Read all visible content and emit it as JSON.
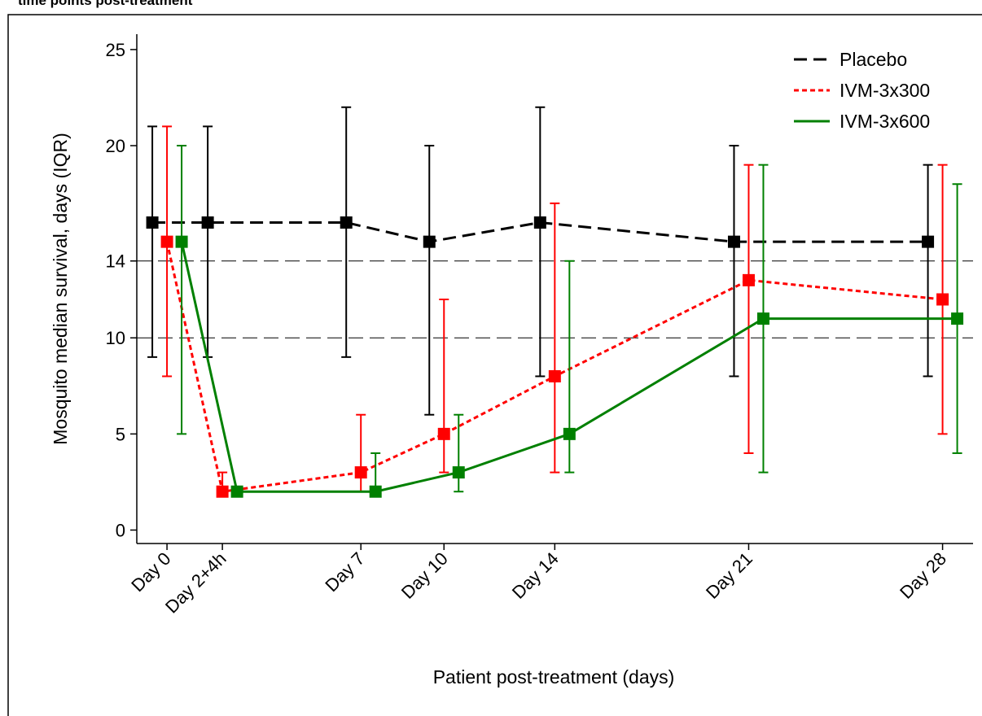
{
  "chart_data": {
    "type": "errorline",
    "title": "time points post-treatment",
    "xlabel": "Patient post-treatment (days)",
    "ylabel": "Mosquito median survival, days (IQR)",
    "x": [
      0,
      2,
      7,
      10,
      14,
      21,
      28
    ],
    "xlim": [
      -1.09,
      29.1
    ],
    "xticks": [
      {
        "value": 0,
        "label": "Day 0"
      },
      {
        "value": 2,
        "label": "Day 2+4h"
      },
      {
        "value": 7,
        "label": "Day 7"
      },
      {
        "value": 10,
        "label": "Day 10"
      },
      {
        "value": 14,
        "label": "Day 14"
      },
      {
        "value": 21,
        "label": "Day 21"
      },
      {
        "value": 28,
        "label": "Day 28"
      }
    ],
    "ylim": [
      -0.7,
      25.8
    ],
    "yticks": [
      0,
      5,
      10,
      14,
      20,
      25
    ],
    "hlines": [
      10,
      14
    ],
    "legend": "upper right",
    "series": [
      {
        "name": "Placebo",
        "color": "#000000",
        "style": "dashed",
        "values": [
          16,
          16,
          16,
          15,
          16,
          15,
          15
        ],
        "low": [
          9,
          9,
          9,
          6,
          8,
          8,
          8
        ],
        "high": [
          21,
          21,
          22,
          20,
          22,
          20,
          19
        ]
      },
      {
        "name": "IVM-3x300",
        "color": "#ff0000",
        "style": "dotted",
        "values": [
          15,
          2,
          3,
          5,
          8,
          13,
          12
        ],
        "low": [
          8,
          2,
          2,
          3,
          3,
          4,
          5
        ],
        "high": [
          21,
          3,
          6,
          12,
          17,
          19,
          19
        ]
      },
      {
        "name": "IVM-3x600",
        "color": "#008000",
        "style": "solid",
        "values": [
          15,
          2,
          2,
          3,
          5,
          11,
          11
        ],
        "low": [
          5,
          2,
          2,
          2,
          3,
          3,
          4
        ],
        "high": [
          20,
          2,
          4,
          6,
          14,
          19,
          18
        ]
      }
    ]
  }
}
